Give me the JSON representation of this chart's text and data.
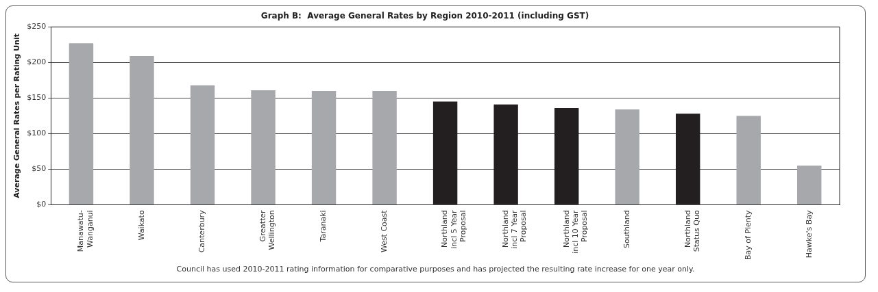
{
  "chart_data": {
    "type": "bar",
    "title": "Graph B:  Average General Rates by Region 2010-2011 (including GST)",
    "ylabel": "Average General Rates per Rating Unit",
    "categories": [
      "Manawatu-\nWanganui",
      "Waikato",
      "Canterbury",
      "Greatter\nWellington",
      "Taranaki",
      "West Coast",
      "Northland\nincl 5 Year\nProposal",
      "Northland\nincl 7 Year\nProposal",
      "Northland\nincl 10 Year\nProposal",
      "Southland",
      "Northland\nStatus Quo",
      "Bay of Plenty",
      "Hawke's Bay"
    ],
    "values": [
      227,
      209,
      168,
      161,
      160,
      160,
      145,
      141,
      136,
      134,
      128,
      125,
      55
    ],
    "colors": [
      "#a7a8ab",
      "#a7a8ab",
      "#a7a8ab",
      "#a7a8ab",
      "#a7a8ab",
      "#a7a8ab",
      "#231f20",
      "#231f20",
      "#231f20",
      "#a7a8ab",
      "#231f20",
      "#a7a8ab",
      "#a7a8ab"
    ],
    "ylim": [
      0,
      250
    ],
    "yticks": [
      {
        "value": 0,
        "label": "$0"
      },
      {
        "value": 50,
        "label": "$50"
      },
      {
        "value": 100,
        "label": "$100"
      },
      {
        "value": 150,
        "label": "$150"
      },
      {
        "value": 200,
        "label": "$200"
      },
      {
        "value": 250,
        "label": "$250"
      }
    ],
    "grid": "y",
    "legend": false,
    "annotations": [
      "Council has used 2010-2011 rating information for comparative purposes and has projected the resulting rate increase for one year only."
    ]
  }
}
